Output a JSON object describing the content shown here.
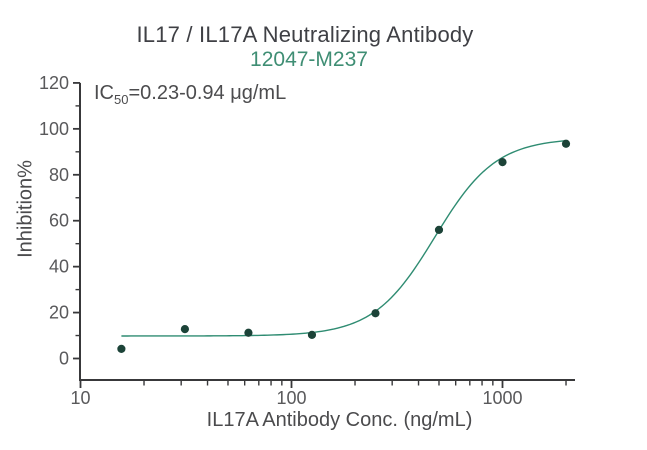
{
  "annotation": {
    "label": "IC",
    "sub": "50",
    "value": "=0.23-0.94 μg/mL"
  },
  "colors": {
    "background": "#ffffff",
    "title": "#3f4045",
    "subtitle": "#3f8e74",
    "annotation": "#4c4c4e",
    "axis": "#38383a",
    "tick_label": "#59595b",
    "axis_label": "#4b4b4d",
    "curve": "#2f8c72",
    "point": "#1c4338"
  },
  "chart_data": {
    "type": "scatter",
    "title": "IL17 / IL17A Neutralizing Antibody",
    "subtitle": "12047-M237",
    "xlabel": "IL17A Antibody Conc. (ng/mL)",
    "ylabel": "Inhibition%",
    "xscale": "log",
    "xlim": [
      9.9,
      2200
    ],
    "ylim": [
      -9.5,
      120
    ],
    "xticks": [
      10,
      100,
      1000
    ],
    "xminorticks": [
      20,
      30,
      40,
      50,
      60,
      70,
      80,
      90,
      200,
      300,
      400,
      500,
      600,
      700,
      800,
      900,
      2000
    ],
    "yticks": [
      0,
      20,
      40,
      60,
      80,
      100,
      120
    ],
    "yminorticks": [
      10,
      30,
      50,
      70,
      90,
      110
    ],
    "grid": false,
    "legend": "none",
    "series": [
      {
        "name": "12047-M237",
        "x": [
          15.625,
          31.25,
          62.5,
          125,
          250,
          500,
          1000,
          2000
        ],
        "y": [
          4.2,
          12.8,
          11.2,
          10.3,
          19.7,
          56.0,
          85.5,
          93.5
        ]
      }
    ],
    "fit_curve": {
      "model": "4PL",
      "bottom": 9.8,
      "top": 96,
      "ec50": 478,
      "hill": 3,
      "x_range": [
        15.625,
        2000
      ]
    },
    "ic50_annotation": "IC50=0.23-0.94 μg/mL"
  }
}
